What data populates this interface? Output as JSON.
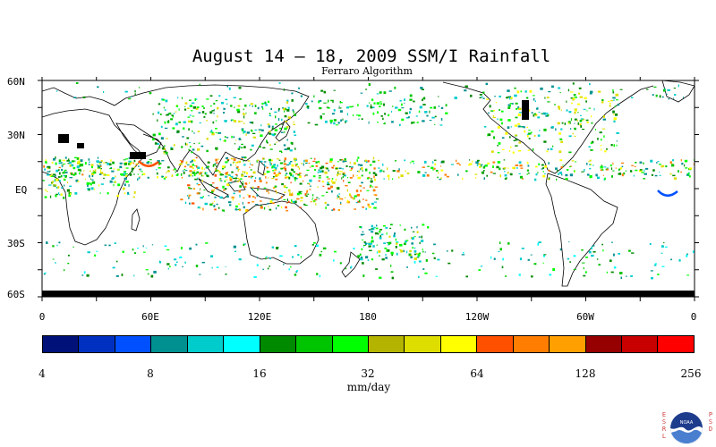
{
  "title": "August 14 – 18, 2009 SSM/I Rainfall",
  "subtitle": "Ferraro Algorithm",
  "lat_labels": [
    "60N",
    "30N",
    "EQ",
    "30S",
    "60S"
  ],
  "lon_labels": [
    "0",
    "60E",
    "120E",
    "180",
    "120W",
    "60W",
    "0"
  ],
  "colorbar": {
    "tick_labels": [
      "4",
      "8",
      "16",
      "32",
      "64",
      "128",
      "256"
    ],
    "units": "mm/day",
    "colors": [
      "#00127a",
      "#0030c0",
      "#0050ff",
      "#009090",
      "#00cccc",
      "#00ffff",
      "#008a00",
      "#00c400",
      "#00ff00",
      "#b4b400",
      "#dddd00",
      "#ffff00",
      "#ff5000",
      "#ff7d00",
      "#ffa000",
      "#960000",
      "#c80000",
      "#ff0000"
    ]
  },
  "logo": {
    "left_text": "ESRL",
    "right_text": "PSD",
    "center_text": "NOAA"
  }
}
